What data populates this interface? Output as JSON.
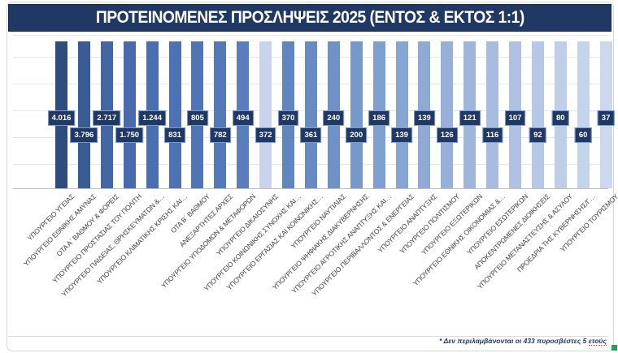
{
  "title": "ΠΡΟΤΕΙΝΟΜΕΝΕΣ ΠΡΟΣΛΗΨΕΙΣ 2025 (ΕΝΤΟΣ & ΕΚΤΟΣ 1:1)",
  "footnote": {
    "prefix": "* Δεν περιλαμβάνονται οι 433 πυροσβέστες 5 ",
    "underlined_word": "ετούς"
  },
  "colors": {
    "title_bg": "#1F3864",
    "title_text": "#ffffff",
    "value_label_bg": "#1F3864",
    "value_label_border": "#7C9AD0",
    "gridline": "#e7e7e7",
    "axis_line": "#bfbfbf",
    "selection_handle": "#1fa05a"
  },
  "chart_data": {
    "type": "bar",
    "title": "ΠΡΟΤΕΙΝΟΜΕΝΕΣ ΠΡΟΣΛΗΨΕΙΣ 2025 (ΕΝΤΟΣ & ΕΚΤΟΣ 1:1)",
    "xlabel": "",
    "ylabel": "",
    "value_axis": "hidden",
    "grid": true,
    "legend": "none",
    "bars_full_height": true,
    "label_placement": "staggered boxes alternating high/low on bars",
    "category_label_rotation_deg": 45,
    "categories": [
      "ΥΠΟΥΡΓΕΙΟ ΥΓΕΙΑΣ",
      "ΥΠΟΥΡΓΕΙΟ ΕΘΝΙΚΗΣ ΑΜΥΝΑΣ",
      "ΟΤΑ Α΄ ΒΑΘΜΟΥ & ΦΟΡΕΙΣ",
      "ΥΠΟΥΡΓΕΙΟ ΠΡΟΣΤΑΣΙΑΣ ΤΟΥ ΠΟΛΙΤΗ",
      "ΥΠΟΥΡΓΕΙΟ ΠΑΙΔΕΙΑΣ, ΘΡΗΣΚΕΥΜΑΤΩΝ &…",
      "ΥΠΟΥΡΓΕΙΟ ΚΛΙΜΑΤΙΚΗΣ ΚΡΙΣΗΣ ΚΑΙ…",
      "ΟΤΑ Β΄ ΒΑΘΜΟΥ",
      "ΑΝΕΞΑΡΤΗΤΕΣ ΑΡΧΕΣ",
      "ΥΠΟΥΡΓΕΙΟ ΥΠΟΔΟΜΩΝ & ΜΕΤΑΦΟΡΩΝ",
      "ΥΠΟΥΡΓΕΙΟ ΔΙΚΑΙΟΣΥΝΗΣ",
      "ΥΠΟΥΡΓΕΙΟ ΚΟΙΝΩΝΙΚΗΣ ΣΥΝΟΧΗΣ ΚΑΙ…",
      "ΥΠΟΥΡΓΕΙΟ ΕΡΓΑΣΙΑΣ ΚΑΙ ΚΟΙΝΩΝΙΚΗΣ…",
      "ΥΠΟΥΡΓΕΙΟ ΝΑΥΤΙΛΙΑΣ",
      "ΥΠΟΥΡΓΕΙΟ ΨΗΦΙΑΚΗΣ ΔΙΑΚΥΒΕΡΝΗΣΗΣ",
      "ΥΠΟΥΡΓΕΙΟ ΑΓΡΟΤΙΚΗΣ ΑΝΑΠΤΥΞΗΣ ΚΑΙ…",
      "ΥΠΟΥΡΓΕΙΟ ΠΕΡΙΒΑΛΛΟΝΤΟΣ & ΕΝΕΡΓΕΙΑΣ",
      "ΥΠΟΥΡΓΕΙΟ ΑΝΑΠΤΥΞΗΣ",
      "ΥΠΟΥΡΓΕΙΟ ΠΟΛΙΤΙΣΜΟΥ",
      "ΥΠΟΥΡΓΕΙΟ ΕΞΩΤΕΡΙΚΩΝ",
      "ΥΠΟΥΡΓΕΙΟ ΕΘΝΙΚΗΣ ΟΙΚΟΝΟΜΙΑΣ &…",
      "ΥΠΟΥΡΓΕΙΟ ΕΣΩΤΕΡΙΚΩΝ",
      "ΑΠΟΚΕΝΤΡΩΜΕΝΕΣ ΔΙΟΙΚΗΣΕΙΣ",
      "ΥΠΟΥΡΓΕΙΟ ΜΕΤΑΝΑΣΤΕΥΣΗΣ & ΑΣΥΛΟΥ",
      "ΠΡΟΕΔΡΙΑ ΤΗΣ ΚΥΒΕΡΝΗΣΗΣ/Γ…",
      "ΥΠΟΥΡΓΕΙΟ ΤΟΥΡΙΣΜΟΥ"
    ],
    "values": [
      4016,
      3796,
      2717,
      1750,
      1244,
      831,
      805,
      782,
      494,
      372,
      370,
      361,
      240,
      200,
      186,
      139,
      139,
      126,
      121,
      116,
      107,
      92,
      80,
      60,
      37
    ],
    "value_labels": [
      "4.016",
      "3.796",
      "2.717",
      "1.750",
      "1.244",
      "831",
      "805",
      "782",
      "494",
      "372",
      "370",
      "361",
      "240",
      "200",
      "186",
      "139",
      "139",
      "126",
      "121",
      "116",
      "107",
      "92",
      "80",
      "60",
      "37"
    ],
    "bar_colors": [
      "#2E4C7E",
      "#3A5C94",
      "#4367A5",
      "#476BAD",
      "#4A6FB0",
      "#4C72B3",
      "#4F75B5",
      "#5379B8",
      "#597EBB",
      "#C9D3EC",
      "#6186BF",
      "#678BC2",
      "#6F92C6",
      "#7798CA",
      "#7F9FCE",
      "#87A5D2",
      "#8FABD5",
      "#97B0D9",
      "#9FB6DC",
      "#A7BCDF",
      "#AFC2E3",
      "#B7C8E6",
      "#BFCEE9",
      "#C6D3EC",
      "#CDD8EF"
    ]
  }
}
